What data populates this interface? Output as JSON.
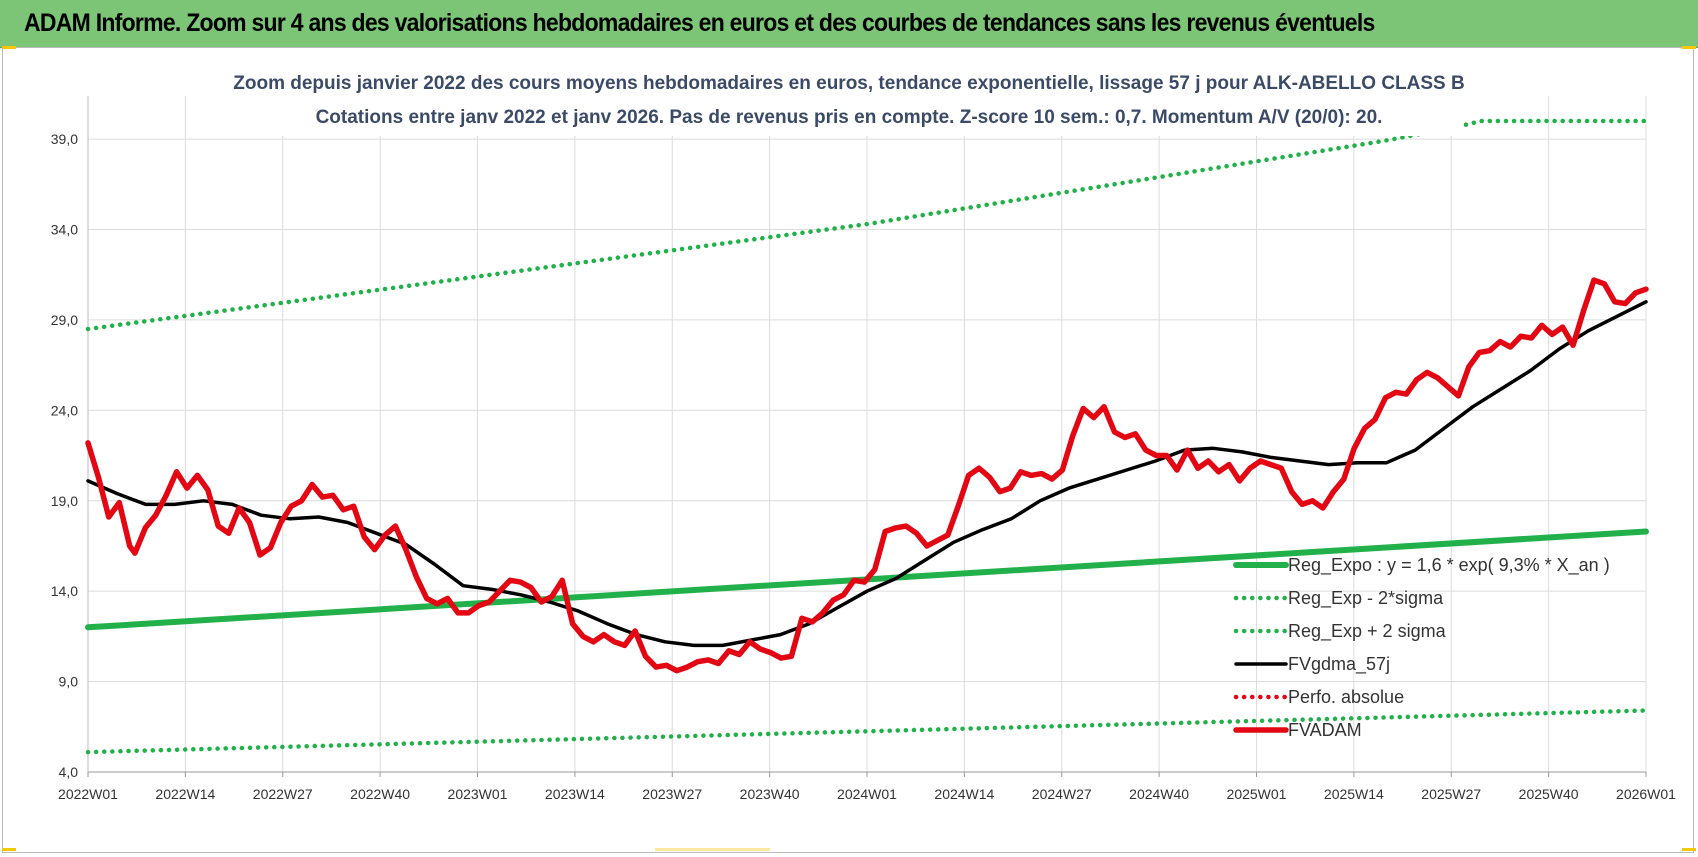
{
  "banner": {
    "title": "ADAM Informe. Zoom sur 4 ans des valorisations hebdomadaires en euros et des courbes de tendances sans les revenus éventuels"
  },
  "chart_data": {
    "type": "line",
    "title": "Zoom depuis janvier 2022 des cours moyens hebdomadaires en euros, tendance exponentielle, lissage 57 j pour ALK-ABELLO CLASS B",
    "subtitle": "Cotations entre janv 2022 et janv 2026. Pas de revenus pris en compte. Z-score 10 sem.: 0,7. Momentum A/V (20/0): 20.",
    "xlabel": "",
    "ylabel": "",
    "x_ticks": [
      "2022W01",
      "2022W14",
      "2022W27",
      "2022W40",
      "2023W01",
      "2023W14",
      "2023W27",
      "2023W40",
      "2024W01",
      "2024W14",
      "2024W27",
      "2024W40",
      "2025W01",
      "2025W14",
      "2025W27",
      "2025W40",
      "2026W01"
    ],
    "y_ticks": [
      "4,0",
      "9,0",
      "14,0",
      "19,0",
      "24,0",
      "29,0",
      "34,0",
      "39,0"
    ],
    "ylim": [
      4,
      40
    ],
    "grid": true,
    "legend_position": "bottom-right",
    "series": [
      {
        "name": "Reg_Expo : y = 1,6 * exp( 9,3% *  X_an )",
        "color": "#22b04b",
        "style": "solid-thick",
        "points": [
          [
            0,
            12.0
          ],
          [
            208,
            17.3
          ]
        ]
      },
      {
        "name": "Reg_Exp - 2*sigma",
        "color": "#22b04b",
        "style": "dotted",
        "points": [
          [
            0,
            5.1
          ],
          [
            208,
            7.4
          ]
        ]
      },
      {
        "name": "Reg_Exp + 2 sigma",
        "color": "#22b04b",
        "style": "dotted",
        "points": [
          [
            0,
            28.5
          ],
          [
            104,
            34.3
          ],
          [
            173,
            38.9
          ],
          [
            182,
            39.6
          ],
          [
            186,
            40.0
          ],
          [
            208,
            40.0
          ]
        ]
      },
      {
        "name": "FVgdma_57j",
        "color": "#000000",
        "style": "solid",
        "points": [
          [
            0,
            20.1
          ],
          [
            4,
            19.4
          ],
          [
            8,
            18.8
          ],
          [
            12,
            18.8
          ],
          [
            16,
            19.0
          ],
          [
            20,
            18.8
          ],
          [
            24,
            18.2
          ],
          [
            28,
            18.0
          ],
          [
            32,
            18.1
          ],
          [
            36,
            17.8
          ],
          [
            40,
            17.2
          ],
          [
            44,
            16.6
          ],
          [
            48,
            15.5
          ],
          [
            52,
            14.3
          ],
          [
            56,
            14.1
          ],
          [
            60,
            13.8
          ],
          [
            64,
            13.4
          ],
          [
            68,
            12.9
          ],
          [
            72,
            12.2
          ],
          [
            76,
            11.6
          ],
          [
            80,
            11.2
          ],
          [
            84,
            11.0
          ],
          [
            88,
            11.0
          ],
          [
            92,
            11.3
          ],
          [
            96,
            11.6
          ],
          [
            100,
            12.2
          ],
          [
            104,
            13.1
          ],
          [
            108,
            14.0
          ],
          [
            112,
            14.7
          ],
          [
            116,
            15.7
          ],
          [
            120,
            16.7
          ],
          [
            124,
            17.4
          ],
          [
            128,
            18.0
          ],
          [
            132,
            19.0
          ],
          [
            136,
            19.7
          ],
          [
            140,
            20.2
          ],
          [
            144,
            20.7
          ],
          [
            148,
            21.2
          ],
          [
            152,
            21.8
          ],
          [
            156,
            21.9
          ],
          [
            160,
            21.7
          ],
          [
            164,
            21.4
          ],
          [
            168,
            21.2
          ],
          [
            172,
            21.0
          ],
          [
            176,
            21.1
          ],
          [
            180,
            21.1
          ],
          [
            184,
            21.8
          ],
          [
            188,
            23.0
          ],
          [
            192,
            24.2
          ],
          [
            196,
            25.2
          ],
          [
            200,
            26.2
          ],
          [
            204,
            27.4
          ],
          [
            208,
            28.4
          ],
          [
            212,
            29.2
          ],
          [
            216,
            30.0
          ]
        ]
      },
      {
        "name": "Perfo. absolue",
        "color": "#e30613",
        "style": "dotted",
        "points": []
      },
      {
        "name": "FVADAM",
        "color": "#e30613",
        "style": "solid-thick",
        "points": [
          [
            0,
            22.2
          ],
          [
            2,
            20.3
          ],
          [
            4,
            18.1
          ],
          [
            6,
            18.9
          ],
          [
            8,
            16.5
          ],
          [
            9,
            16.1
          ],
          [
            11,
            17.5
          ],
          [
            13,
            18.2
          ],
          [
            15,
            19.3
          ],
          [
            17,
            20.6
          ],
          [
            19,
            19.7
          ],
          [
            21,
            20.4
          ],
          [
            23,
            19.6
          ],
          [
            25,
            17.6
          ],
          [
            27,
            17.2
          ],
          [
            29,
            18.6
          ],
          [
            31,
            17.8
          ],
          [
            33,
            16.0
          ],
          [
            35,
            16.4
          ],
          [
            37,
            17.8
          ],
          [
            39,
            18.7
          ],
          [
            41,
            19.0
          ],
          [
            43,
            19.9
          ],
          [
            45,
            19.2
          ],
          [
            47,
            19.3
          ],
          [
            49,
            18.5
          ],
          [
            51,
            18.7
          ],
          [
            53,
            17.0
          ],
          [
            55,
            16.3
          ],
          [
            57,
            17.1
          ],
          [
            59,
            17.6
          ],
          [
            61,
            16.3
          ],
          [
            63,
            14.8
          ],
          [
            65,
            13.6
          ],
          [
            67,
            13.3
          ],
          [
            69,
            13.6
          ],
          [
            71,
            12.8
          ],
          [
            73,
            12.8
          ],
          [
            75,
            13.2
          ],
          [
            77,
            13.4
          ],
          [
            79,
            14.0
          ],
          [
            81,
            14.6
          ],
          [
            83,
            14.5
          ],
          [
            85,
            14.2
          ],
          [
            87,
            13.4
          ],
          [
            89,
            13.7
          ],
          [
            91,
            14.6
          ],
          [
            93,
            12.2
          ],
          [
            95,
            11.5
          ],
          [
            97,
            11.2
          ],
          [
            99,
            11.6
          ],
          [
            101,
            11.2
          ],
          [
            103,
            11.0
          ],
          [
            105,
            11.8
          ],
          [
            107,
            10.4
          ],
          [
            109,
            9.8
          ],
          [
            111,
            9.9
          ],
          [
            113,
            9.6
          ],
          [
            115,
            9.8
          ],
          [
            117,
            10.1
          ],
          [
            119,
            10.2
          ],
          [
            121,
            10.0
          ],
          [
            123,
            10.7
          ],
          [
            125,
            10.5
          ],
          [
            127,
            11.2
          ],
          [
            129,
            10.8
          ],
          [
            131,
            10.6
          ],
          [
            133,
            10.3
          ],
          [
            135,
            10.4
          ],
          [
            137,
            12.5
          ],
          [
            139,
            12.3
          ],
          [
            141,
            12.8
          ],
          [
            143,
            13.5
          ],
          [
            145,
            13.8
          ],
          [
            147,
            14.6
          ],
          [
            149,
            14.5
          ],
          [
            151,
            15.2
          ],
          [
            153,
            17.3
          ],
          [
            155,
            17.5
          ],
          [
            157,
            17.6
          ],
          [
            159,
            17.2
          ],
          [
            161,
            16.5
          ],
          [
            163,
            16.8
          ],
          [
            165,
            17.1
          ],
          [
            167,
            18.7
          ],
          [
            169,
            20.4
          ],
          [
            171,
            20.8
          ],
          [
            173,
            20.3
          ],
          [
            175,
            19.5
          ],
          [
            177,
            19.7
          ],
          [
            179,
            20.6
          ],
          [
            181,
            20.4
          ],
          [
            183,
            20.5
          ],
          [
            185,
            20.2
          ],
          [
            187,
            20.7
          ],
          [
            189,
            22.6
          ],
          [
            191,
            24.1
          ],
          [
            193,
            23.6
          ],
          [
            195,
            24.2
          ],
          [
            197,
            22.8
          ],
          [
            199,
            22.5
          ],
          [
            201,
            22.7
          ],
          [
            203,
            21.8
          ],
          [
            205,
            21.5
          ],
          [
            207,
            21.5
          ],
          [
            209,
            20.7
          ],
          [
            211,
            21.8
          ],
          [
            213,
            20.8
          ],
          [
            215,
            21.2
          ],
          [
            217,
            20.6
          ],
          [
            219,
            21.0
          ],
          [
            221,
            20.1
          ],
          [
            223,
            20.8
          ],
          [
            225,
            21.2
          ],
          [
            227,
            21.0
          ],
          [
            229,
            20.8
          ],
          [
            231,
            19.5
          ],
          [
            233,
            18.8
          ],
          [
            235,
            19.0
          ],
          [
            237,
            18.6
          ],
          [
            239,
            19.5
          ],
          [
            241,
            20.2
          ],
          [
            243,
            21.9
          ],
          [
            245,
            23.0
          ],
          [
            247,
            23.5
          ],
          [
            249,
            24.7
          ],
          [
            251,
            25.0
          ],
          [
            253,
            24.9
          ],
          [
            255,
            25.7
          ],
          [
            257,
            26.1
          ],
          [
            259,
            25.8
          ],
          [
            261,
            25.3
          ],
          [
            263,
            24.8
          ],
          [
            265,
            26.4
          ],
          [
            267,
            27.2
          ],
          [
            269,
            27.3
          ],
          [
            271,
            27.8
          ],
          [
            273,
            27.5
          ],
          [
            275,
            28.1
          ],
          [
            277,
            28.0
          ],
          [
            279,
            28.7
          ],
          [
            281,
            28.2
          ],
          [
            283,
            28.6
          ],
          [
            285,
            27.6
          ],
          [
            287,
            29.5
          ],
          [
            289,
            31.2
          ],
          [
            291,
            31.0
          ],
          [
            293,
            30.0
          ],
          [
            295,
            29.9
          ],
          [
            297,
            30.5
          ],
          [
            299,
            30.7
          ]
        ]
      }
    ]
  }
}
